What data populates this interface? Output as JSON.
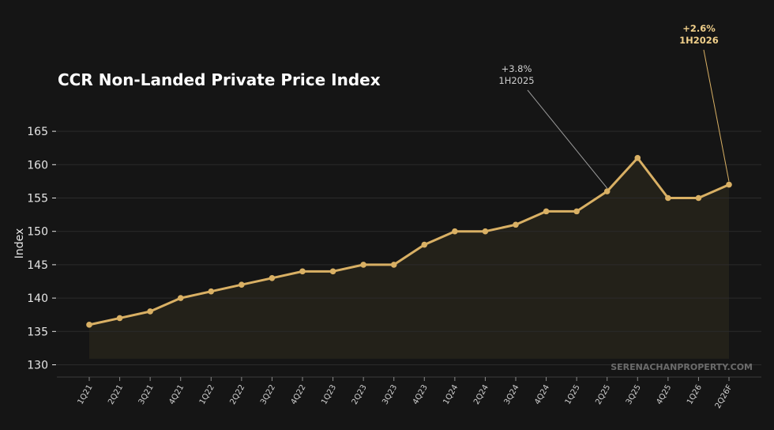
{
  "chart_data": {
    "type": "line",
    "title": "CCR Non-Landed Private Price Index",
    "ylabel": "Index",
    "xlabel": "",
    "ylim": [
      128,
      168
    ],
    "yticks": [
      130,
      135,
      140,
      145,
      150,
      155,
      160,
      165
    ],
    "grid": "horizontal",
    "categories": [
      "1Q21",
      "2Q21",
      "3Q21",
      "4Q21",
      "1Q22",
      "2Q22",
      "3Q22",
      "4Q22",
      "1Q23",
      "2Q23",
      "3Q23",
      "4Q23",
      "1Q24",
      "2Q24",
      "3Q24",
      "4Q24",
      "1Q25",
      "2Q25",
      "3Q25",
      "4Q25",
      "1Q26",
      "2Q26F"
    ],
    "values": [
      136,
      137,
      138,
      140,
      141,
      142,
      143,
      144,
      144,
      145,
      145,
      148,
      150,
      150,
      151,
      153,
      153,
      156,
      161,
      155,
      155,
      157
    ],
    "annotations": [
      {
        "line1": "+3.8%",
        "line2": "1H2025",
        "category": "2Q25",
        "highlight": false
      },
      {
        "line1": "+2.6%",
        "line2": "1H2026",
        "category": "2Q26F",
        "highlight": true
      }
    ],
    "watermark": "SERENACHANPROPERTY.COM",
    "colors": {
      "background": "#151515",
      "line": "#d9b064",
      "area": "#252219",
      "grid": "#2b2b2b",
      "text": "#e6e6e6",
      "muted": "#cfcfcf",
      "annotation_highlight": "#f0cf8a",
      "watermark": "#6b6b6b"
    }
  }
}
